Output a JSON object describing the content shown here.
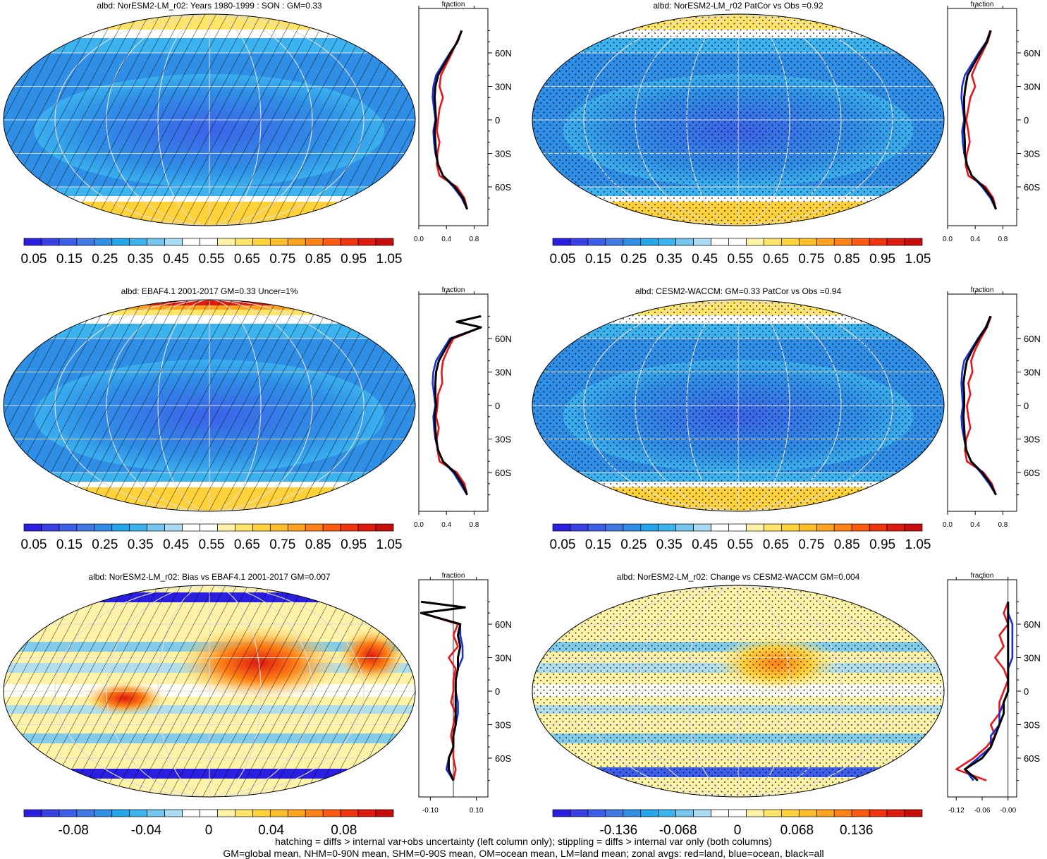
{
  "footer": {
    "line1": "hatching = diffs > internal var+obs uncertainty (left column only); stippling = diffs > internal var only (both columns)",
    "line2": "GM=global mean, NHM=0-90N mean, SHM=0-90S mean, OM=ocean mean, LM=land mean; zonal avgs: red=land, blue=ocean, black=all"
  },
  "colors": {
    "land": "#e8141b",
    "ocean": "#1a2fd4",
    "all": "#000000",
    "abs_scale": [
      "#2a1ee0",
      "#3a3fe6",
      "#3d5ee8",
      "#4178e4",
      "#2f8fe6",
      "#24a6ec",
      "#3cb3ef",
      "#74c6ef",
      "#a9dbf3",
      "#ffffff",
      "#ffffff",
      "#fff3a8",
      "#ffe46a",
      "#ffd23a",
      "#ffbf2a",
      "#ffa21d",
      "#ff8014",
      "#ff5a10",
      "#f0350e",
      "#e01a10",
      "#c80c0c"
    ],
    "diff_scale": [
      "#2a1ee0",
      "#3a3fe6",
      "#3d5ee8",
      "#4178e4",
      "#2f8fe6",
      "#24a6ec",
      "#3cb3ef",
      "#74c6ef",
      "#a9dbf3",
      "#ffffff",
      "#ffffff",
      "#fff3a8",
      "#ffe46a",
      "#ffd23a",
      "#ffbf2a",
      "#ffa21d",
      "#ff8014",
      "#ff5a10",
      "#f0350e",
      "#e01a10",
      "#c80c0c"
    ]
  },
  "chart_data": [
    {
      "type": "heatmap",
      "title": "albd: NorESM2-LM_r02: Years 1980-1999 : SON : GM=0.33",
      "overlay": "hatching",
      "scale": "abs",
      "colorbar_labels": [
        "0.05",
        "0.15",
        "0.25",
        "0.35",
        "0.45",
        "0.55",
        "0.65",
        "0.75",
        "0.85",
        "0.95",
        "1.05"
      ],
      "zonal": {
        "xlabel": "fraction",
        "xticks": [
          "0.0",
          "0.4",
          "0.8"
        ],
        "xlim": [
          0.0,
          1.0
        ],
        "ylabels": [
          "60N",
          "30N",
          "0",
          "30S",
          "60S"
        ],
        "lat": [
          80,
          70,
          60,
          50,
          40,
          30,
          20,
          10,
          0,
          -10,
          -20,
          -30,
          -40,
          -50,
          -60,
          -70,
          -80
        ],
        "land": [
          0.62,
          0.55,
          0.48,
          0.4,
          0.32,
          0.3,
          0.35,
          0.3,
          0.28,
          0.26,
          0.3,
          0.27,
          0.26,
          0.3,
          0.55,
          0.66,
          0.7
        ],
        "ocean": [
          0.62,
          0.56,
          0.45,
          0.35,
          0.25,
          0.21,
          0.2,
          0.22,
          0.24,
          0.21,
          0.22,
          0.24,
          0.28,
          0.35,
          0.5,
          0.62,
          0.7
        ],
        "all": [
          0.62,
          0.56,
          0.46,
          0.37,
          0.28,
          0.24,
          0.23,
          0.24,
          0.25,
          0.23,
          0.24,
          0.25,
          0.28,
          0.35,
          0.52,
          0.64,
          0.7
        ]
      }
    },
    {
      "type": "heatmap",
      "title": "albd: NorESM2-LM_r02 PatCor vs Obs =0.92",
      "overlay": "stippling",
      "scale": "abs",
      "colorbar_labels": [
        "0.05",
        "0.15",
        "0.25",
        "0.35",
        "0.45",
        "0.55",
        "0.65",
        "0.75",
        "0.85",
        "0.95",
        "1.05"
      ],
      "zonal": {
        "xlabel": "fraction",
        "xticks": [
          "0.0",
          "0.4",
          "0.8"
        ],
        "xlim": [
          0.0,
          1.0
        ],
        "ylabels": [
          "60N",
          "30N",
          "0",
          "30S",
          "60S"
        ],
        "lat": [
          80,
          70,
          60,
          50,
          40,
          30,
          20,
          10,
          0,
          -10,
          -20,
          -30,
          -40,
          -50,
          -60,
          -70,
          -80
        ],
        "land": [
          0.63,
          0.58,
          0.5,
          0.42,
          0.35,
          0.4,
          0.33,
          0.3,
          0.27,
          0.3,
          0.32,
          0.28,
          0.26,
          0.3,
          0.55,
          0.66,
          0.7
        ],
        "ocean": [
          0.62,
          0.56,
          0.45,
          0.35,
          0.25,
          0.21,
          0.2,
          0.22,
          0.24,
          0.21,
          0.22,
          0.24,
          0.28,
          0.35,
          0.5,
          0.62,
          0.7
        ],
        "all": [
          0.62,
          0.57,
          0.47,
          0.38,
          0.29,
          0.26,
          0.24,
          0.24,
          0.25,
          0.24,
          0.25,
          0.25,
          0.28,
          0.35,
          0.52,
          0.64,
          0.7
        ]
      }
    },
    {
      "type": "heatmap",
      "title": "albd: EBAF4.1 2001-2017 GM=0.33 Uncer=1%",
      "overlay": "hatching",
      "scale": "abs",
      "colorbar_labels": [
        "0.05",
        "0.15",
        "0.25",
        "0.35",
        "0.45",
        "0.55",
        "0.65",
        "0.75",
        "0.85",
        "0.95",
        "1.05"
      ],
      "zonal": {
        "xlabel": "fraction",
        "xticks": [
          "0.0",
          "0.4",
          "0.8"
        ],
        "xlim": [
          0.0,
          1.0
        ],
        "ylabels": [
          "60N",
          "30N",
          "0",
          "30S",
          "60S"
        ],
        "lat": [
          80,
          75,
          70,
          60,
          50,
          40,
          30,
          20,
          10,
          0,
          -10,
          -20,
          -30,
          -40,
          -50,
          -60,
          -70,
          -80
        ],
        "land": [
          0.9,
          0.55,
          0.9,
          0.5,
          0.42,
          0.35,
          0.33,
          0.34,
          0.28,
          0.27,
          0.25,
          0.29,
          0.26,
          0.27,
          0.3,
          0.55,
          0.66,
          0.7
        ],
        "ocean": [
          0.9,
          0.55,
          0.9,
          0.45,
          0.35,
          0.25,
          0.21,
          0.2,
          0.22,
          0.24,
          0.21,
          0.22,
          0.24,
          0.28,
          0.35,
          0.5,
          0.6,
          0.7
        ],
        "all": [
          0.9,
          0.55,
          0.9,
          0.47,
          0.38,
          0.29,
          0.25,
          0.24,
          0.24,
          0.25,
          0.23,
          0.24,
          0.25,
          0.28,
          0.35,
          0.52,
          0.63,
          0.7
        ]
      }
    },
    {
      "type": "heatmap",
      "title": "albd: CESM2-WACCM: GM=0.33 PatCor vs Obs =0.94",
      "overlay": "stippling",
      "scale": "abs",
      "colorbar_labels": [
        "0.05",
        "0.15",
        "0.25",
        "0.35",
        "0.45",
        "0.55",
        "0.65",
        "0.75",
        "0.85",
        "0.95",
        "1.05"
      ],
      "zonal": {
        "xlabel": "fraction",
        "xticks": [
          "0.0",
          "0.4",
          "0.8"
        ],
        "xlim": [
          0.0,
          1.0
        ],
        "ylabels": [
          "60N",
          "30N",
          "0",
          "30S",
          "60S"
        ],
        "lat": [
          80,
          70,
          60,
          50,
          40,
          30,
          20,
          10,
          0,
          -10,
          -20,
          -30,
          -40,
          -50,
          -60,
          -70,
          -80
        ],
        "land": [
          0.63,
          0.57,
          0.48,
          0.4,
          0.34,
          0.36,
          0.3,
          0.33,
          0.28,
          0.3,
          0.33,
          0.27,
          0.25,
          0.28,
          0.52,
          0.64,
          0.7
        ],
        "ocean": [
          0.62,
          0.55,
          0.44,
          0.34,
          0.24,
          0.21,
          0.2,
          0.21,
          0.22,
          0.2,
          0.21,
          0.24,
          0.27,
          0.34,
          0.48,
          0.6,
          0.7
        ],
        "all": [
          0.62,
          0.56,
          0.45,
          0.36,
          0.28,
          0.25,
          0.23,
          0.24,
          0.24,
          0.23,
          0.24,
          0.25,
          0.27,
          0.34,
          0.5,
          0.62,
          0.7
        ]
      }
    },
    {
      "type": "heatmap",
      "title": "albd: NorESM2-LM_r02: Bias vs EBAF4.1 2001-2017  GM=0.007",
      "overlay": "hatching",
      "scale": "diff",
      "colorbar_labels": [
        "-0.08",
        "-0.04",
        "0",
        "0.04",
        "0.08"
      ],
      "zonal": {
        "xlabel": "fraction",
        "xticks": [
          "-0.10",
          "0.10"
        ],
        "xlim": [
          -0.15,
          0.15
        ],
        "ylabels": [
          "60N",
          "30N",
          "0",
          "30S",
          "60S"
        ],
        "lat": [
          80,
          75,
          70,
          60,
          50,
          40,
          30,
          20,
          10,
          0,
          -10,
          -20,
          -30,
          -40,
          -50,
          -60,
          -70,
          -80
        ],
        "land": [
          -0.14,
          0.05,
          -0.14,
          0.02,
          0.0,
          0.02,
          -0.02,
          0.01,
          0.0,
          0.0,
          -0.01,
          0.01,
          0.0,
          -0.01,
          0.0,
          0.0,
          0.01,
          0.0
        ],
        "ocean": [
          -0.14,
          0.05,
          -0.14,
          0.03,
          0.03,
          0.04,
          0.04,
          0.02,
          0.01,
          0.01,
          0.02,
          0.02,
          0.01,
          0.0,
          0.0,
          -0.02,
          -0.03,
          0.0
        ],
        "all": [
          -0.14,
          0.05,
          -0.14,
          0.03,
          0.02,
          0.03,
          0.02,
          0.02,
          0.01,
          0.01,
          0.01,
          0.01,
          0.01,
          0.0,
          0.0,
          -0.02,
          -0.02,
          0.0
        ]
      }
    },
    {
      "type": "heatmap",
      "title": "albd: NorESM2-LM_r02: Change vs CESM2-WACCM GM=0.004",
      "overlay": "stippling",
      "scale": "diff",
      "colorbar_labels": [
        "-0.136",
        "-0.068",
        "0",
        "0.068",
        "0.136"
      ],
      "zonal": {
        "xlabel": "fraction",
        "xticks": [
          "-0.12",
          "-0.06",
          "-0.00"
        ],
        "xlim": [
          -0.14,
          0.02
        ],
        "ylabels": [
          "60N",
          "30N",
          "0",
          "30S",
          "60S"
        ],
        "lat": [
          80,
          70,
          60,
          50,
          40,
          30,
          20,
          10,
          0,
          -10,
          -20,
          -30,
          -40,
          -50,
          -60,
          -70,
          -80
        ],
        "land": [
          0.0,
          -0.01,
          0.0,
          -0.02,
          -0.01,
          -0.03,
          -0.01,
          0.0,
          -0.01,
          -0.02,
          -0.02,
          -0.04,
          -0.03,
          -0.05,
          -0.08,
          -0.12,
          -0.05
        ],
        "ocean": [
          0.0,
          0.0,
          0.01,
          0.01,
          0.01,
          0.01,
          0.0,
          0.0,
          0.0,
          -0.01,
          -0.02,
          -0.02,
          -0.04,
          -0.04,
          -0.07,
          -0.1,
          -0.08
        ],
        "all": [
          0.0,
          0.0,
          0.0,
          0.0,
          0.0,
          0.0,
          0.0,
          0.0,
          0.0,
          -0.01,
          -0.01,
          -0.02,
          -0.03,
          -0.04,
          -0.06,
          -0.1,
          -0.07
        ]
      }
    }
  ]
}
